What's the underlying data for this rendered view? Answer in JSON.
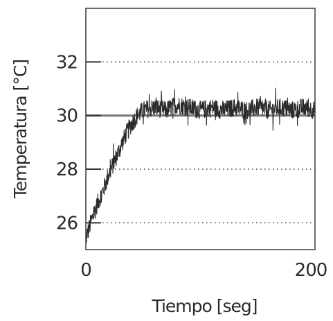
{
  "chart_data": {
    "type": "line",
    "title": "",
    "xlabel": "Tiempo [seg]",
    "ylabel": "Temperatura [°C]",
    "xlim": [
      0,
      200
    ],
    "ylim": [
      25,
      34
    ],
    "x_ticks": [
      "0",
      "200"
    ],
    "y_ticks": [
      "26",
      "28",
      "30",
      "32"
    ],
    "grid": "dotted horizontal lines at y ticks",
    "reference_line": {
      "y": 30,
      "color": "#7a7a7a"
    },
    "series": [
      {
        "color": "#2b2b2b",
        "x": [
          0,
          5,
          10,
          15,
          20,
          25,
          30,
          35,
          40,
          45,
          50,
          60,
          70,
          80,
          90,
          100,
          110,
          120,
          130,
          140,
          150,
          160,
          170,
          180,
          190,
          200
        ],
        "y": [
          25.4,
          26.1,
          26.7,
          27.2,
          27.8,
          28.3,
          28.8,
          29.3,
          29.7,
          30.0,
          30.2,
          30.3,
          30.2,
          30.4,
          30.3,
          30.2,
          30.3,
          30.2,
          30.3,
          30.2,
          30.3,
          30.2,
          30.3,
          30.2,
          30.3,
          30.2
        ],
        "noise_amplitude": 0.35
      }
    ]
  }
}
